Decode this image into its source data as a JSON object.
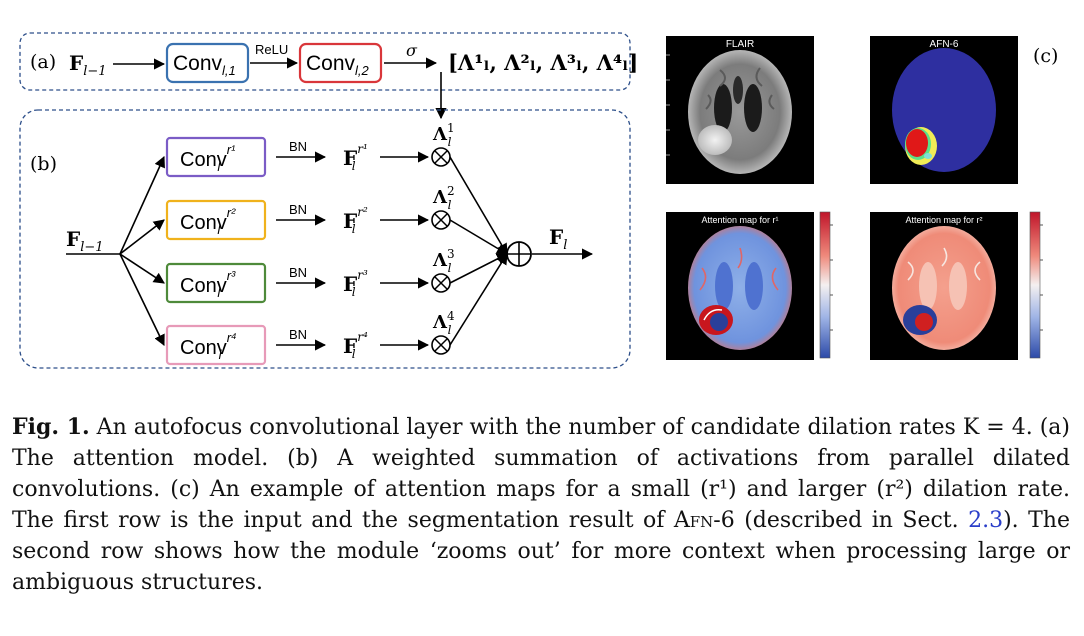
{
  "panel_a": {
    "tag": "(a)",
    "input": "F",
    "input_sub": "l−1",
    "conv1": "Conv",
    "conv1_sub": "l,1",
    "relu": "ReLU",
    "conv2": "Conv",
    "conv2_sub": "l,2",
    "sigma": "σ",
    "output": "[Λ¹ₗ, Λ²ₗ, Λ³ₗ, Λ⁴ₗ]"
  },
  "panel_b": {
    "tag": "(b)",
    "input": "F",
    "input_sub": "l−1",
    "output": "F",
    "output_sub": "l",
    "branches": [
      {
        "conv": "Conv",
        "conv_sub": "l",
        "conv_sup": "r¹",
        "bn": "BN",
        "feat": "F",
        "feat_sub": "l",
        "feat_sup": "r¹",
        "lambda": "Λ",
        "lambda_sub": "l",
        "lambda_sup": "1",
        "color": "#7b5cc6"
      },
      {
        "conv": "Conv",
        "conv_sub": "l",
        "conv_sup": "r²",
        "bn": "BN",
        "feat": "F",
        "feat_sub": "l",
        "feat_sup": "r²",
        "lambda": "Λ",
        "lambda_sub": "l",
        "lambda_sup": "2",
        "color": "#f0b21c"
      },
      {
        "conv": "Conv",
        "conv_sub": "l",
        "conv_sup": "r³",
        "bn": "BN",
        "feat": "F",
        "feat_sub": "l",
        "feat_sup": "r³",
        "lambda": "Λ",
        "lambda_sub": "l",
        "lambda_sup": "3",
        "color": "#4e8a3a"
      },
      {
        "conv": "Conv",
        "conv_sub": "l",
        "conv_sup": "r⁴",
        "bn": "BN",
        "feat": "F",
        "feat_sub": "l",
        "feat_sup": "r⁴",
        "lambda": "Λ",
        "lambda_sub": "l",
        "lambda_sup": "4",
        "color": "#e79ab8"
      }
    ],
    "multiply_symbol": "⊗",
    "sum_symbol": "⊕"
  },
  "panel_c": {
    "tag": "(c)",
    "images": [
      {
        "title": "FLAIR",
        "kind": "flair"
      },
      {
        "title": "AFN-6",
        "kind": "segmentation"
      },
      {
        "title": "Attention map for r¹",
        "kind": "attention-r1"
      },
      {
        "title": "Attention map for r²",
        "kind": "attention-r2"
      }
    ],
    "colorbar": {
      "top_color": "#c0152a",
      "mid_color": "#f4f0f0",
      "bottom_color": "#2c4aa8"
    }
  },
  "caption": {
    "label": "Fig. 1.",
    "part1": " An autofocus convolutional layer with the number of candidate dilation rates K = 4. (a) The attention model. (b) A weighted summation of activations from parallel dilated convolutions. (c) An example of attention maps for a small (r¹) and larger (r²) dilation rate. The first row is the input and the segmentation result of ",
    "afn": "Afn-6",
    "part2": " (described in Sect. ",
    "sect": "2.3",
    "part3": "). The second row shows how the module ‘zooms out’ for more context when processing large or ambiguous structures."
  }
}
